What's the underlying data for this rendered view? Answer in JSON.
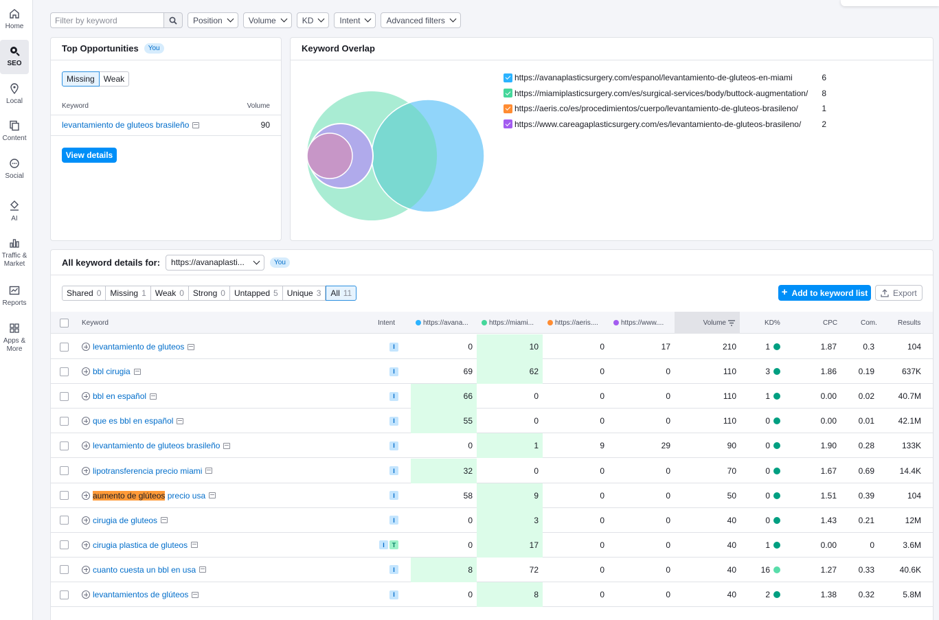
{
  "sidebar": [
    {
      "label": "Home",
      "icon": "home-icon"
    },
    {
      "label": "SEO",
      "icon": "seo-icon",
      "active": true
    },
    {
      "label": "Local",
      "icon": "location-pin-icon"
    },
    {
      "label": "Content",
      "icon": "content-icon"
    },
    {
      "label": "Social",
      "icon": "chat-bubble-icon"
    },
    {
      "label": "AI",
      "icon": "ai-icon"
    },
    {
      "label": "Traffic & Market",
      "icon": "bar-chart-icon"
    },
    {
      "label": "Reports",
      "icon": "reports-icon"
    },
    {
      "label": "Apps & More",
      "icon": "apps-grid-icon"
    }
  ],
  "filters": {
    "keyword_placeholder": "Filter by keyword",
    "dropdowns": [
      "Position",
      "Volume",
      "KD",
      "Intent",
      "Advanced filters"
    ]
  },
  "top_opportunities": {
    "title": "Top Opportunities",
    "badge": "You",
    "tabs": [
      "Missing",
      "Weak"
    ],
    "col_keyword": "Keyword",
    "col_volume": "Volume",
    "keyword": "levantamiento de gluteos brasileño",
    "volume": "90",
    "button": "View details"
  },
  "keyword_overlap": {
    "title": "Keyword Overlap",
    "legend": [
      {
        "url": "https://avanaplasticsurgery.com/espanol/levantamiento-de-gluteos-en-miami",
        "count": "6",
        "color": "#2bb3ff"
      },
      {
        "url": "https://miamiplasticsurgery.com/es/surgical-services/body/buttock-augmentation/",
        "count": "8",
        "color": "#45d79b"
      },
      {
        "url": "https://aeris.co/es/procedimientos/cuerpo/levantamiento-de-gluteos-brasileno/",
        "count": "1",
        "color": "#ff8c32"
      },
      {
        "url": "https://www.careagaplasticsurgery.com/es/levantamiento-de-gluteos-brasileno/",
        "count": "2",
        "color": "#a35cf0"
      }
    ]
  },
  "details": {
    "title": "All keyword details for:",
    "selected_domain": "https://avanaplasti...",
    "badge": "You",
    "tabs": [
      {
        "label": "Shared",
        "count": "0"
      },
      {
        "label": "Missing",
        "count": "1"
      },
      {
        "label": "Weak",
        "count": "0"
      },
      {
        "label": "Strong",
        "count": "0"
      },
      {
        "label": "Untapped",
        "count": "5"
      },
      {
        "label": "Unique",
        "count": "3"
      },
      {
        "label": "All",
        "count": "11",
        "active": true
      }
    ],
    "add_button": "Add to keyword list",
    "export_button": "Export",
    "columns": {
      "keyword": "Keyword",
      "intent": "Intent",
      "d1": "https://avana...",
      "d2": "https://miami...",
      "d3": "https://aeris....",
      "d4": "https://www....",
      "volume": "Volume",
      "kd": "KD%",
      "cpc": "CPC",
      "com": "Com.",
      "results": "Results"
    },
    "rows": [
      {
        "kw": "levantamiento de gluteos",
        "intent": [
          "I"
        ],
        "d1": "0",
        "d2": "10",
        "d3": "0",
        "d4": "17",
        "volume": "210",
        "kd": "1",
        "cpc": "1.87",
        "com": "0.3",
        "results": "104",
        "best": "d2"
      },
      {
        "kw": "bbl cirugia",
        "intent": [
          "I"
        ],
        "d1": "69",
        "d2": "62",
        "d3": "0",
        "d4": "0",
        "volume": "110",
        "kd": "3",
        "cpc": "1.86",
        "com": "0.19",
        "results": "637K",
        "best": "d2"
      },
      {
        "kw": "bbl en español",
        "intent": [
          "I"
        ],
        "d1": "66",
        "d2": "0",
        "d3": "0",
        "d4": "0",
        "volume": "110",
        "kd": "1",
        "cpc": "0.00",
        "com": "0.02",
        "results": "40.7M",
        "best": "d1"
      },
      {
        "kw": "que es bbl en español",
        "intent": [
          "I"
        ],
        "d1": "55",
        "d2": "0",
        "d3": "0",
        "d4": "0",
        "volume": "110",
        "kd": "0",
        "cpc": "0.00",
        "com": "0.01",
        "results": "42.1M",
        "best": "d1"
      },
      {
        "kw": "levantamiento de gluteos brasileño",
        "intent": [
          "I"
        ],
        "d1": "0",
        "d2": "1",
        "d3": "9",
        "d4": "29",
        "volume": "90",
        "kd": "0",
        "cpc": "1.90",
        "com": "0.28",
        "results": "133K",
        "best": "d2"
      },
      {
        "kw": "lipotransferencia precio miami",
        "intent": [
          "I"
        ],
        "d1": "32",
        "d2": "0",
        "d3": "0",
        "d4": "0",
        "volume": "70",
        "kd": "0",
        "cpc": "1.67",
        "com": "0.69",
        "results": "14.4K",
        "best": "d1"
      },
      {
        "kw_hl": "aumento de glúteos",
        "kw_rest": " precio usa",
        "intent": [
          "I"
        ],
        "d1": "58",
        "d2": "9",
        "d3": "0",
        "d4": "0",
        "volume": "50",
        "kd": "0",
        "cpc": "1.51",
        "com": "0.39",
        "results": "104",
        "best": "d2"
      },
      {
        "kw": "cirugia de gluteos",
        "intent": [
          "I"
        ],
        "d1": "0",
        "d2": "3",
        "d3": "0",
        "d4": "0",
        "volume": "40",
        "kd": "0",
        "cpc": "1.43",
        "com": "0.21",
        "results": "12M",
        "best": "d2"
      },
      {
        "kw": "cirugia plastica de gluteos",
        "intent": [
          "I",
          "T"
        ],
        "d1": "0",
        "d2": "17",
        "d3": "0",
        "d4": "0",
        "volume": "40",
        "kd": "1",
        "cpc": "0.00",
        "com": "0",
        "results": "3.6M",
        "best": "d2"
      },
      {
        "kw": "cuanto cuesta un bbl en usa",
        "intent": [
          "I"
        ],
        "d1": "8",
        "d2": "72",
        "d3": "0",
        "d4": "0",
        "volume": "40",
        "kd": "16",
        "cpc": "1.27",
        "com": "0.33",
        "results": "40.6K",
        "best": "d1"
      },
      {
        "kw": "levantamientos de glúteos",
        "intent": [
          "I"
        ],
        "d1": "0",
        "d2": "8",
        "d3": "0",
        "d4": "0",
        "volume": "40",
        "kd": "2",
        "cpc": "1.38",
        "com": "0.32",
        "results": "5.8M",
        "best": "d2"
      }
    ],
    "kd_colors": {
      "low": "#009f81",
      "mid": "#59ddaa"
    }
  }
}
